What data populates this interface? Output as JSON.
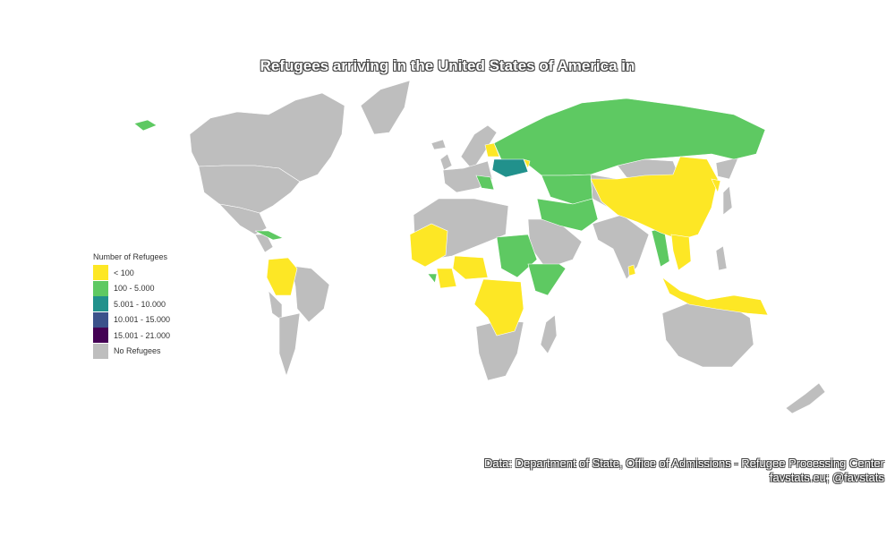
{
  "title": "Refugees arriving in the United States of America in",
  "legend": {
    "title": "Number of Refugees",
    "items": [
      {
        "label": "< 100",
        "color": "#fde725"
      },
      {
        "label": "100 - 5.000",
        "color": "#5ec962"
      },
      {
        "label": "5.001 - 10.000",
        "color": "#21918c"
      },
      {
        "label": "10.001 - 15.000",
        "color": "#3b528b"
      },
      {
        "label": "15.001 - 21.000",
        "color": "#440154"
      },
      {
        "label": "No Refugees",
        "color": "#bebebe"
      }
    ]
  },
  "caption": {
    "line1": "Data: Department of State, Office of Admissions - Refugee Processing Center",
    "line2": "favstats.eu; @favstats"
  }
}
